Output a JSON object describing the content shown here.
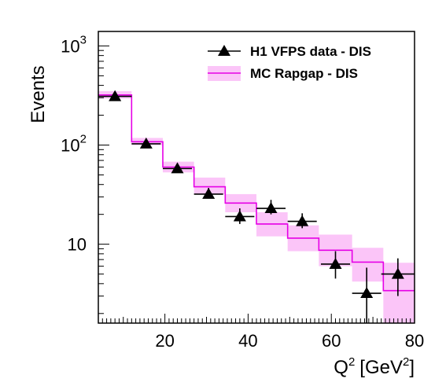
{
  "chart_data": {
    "type": "line",
    "xlabel": "Q",
    "xlabel_sup": "2",
    "xlabel_unit": "[GeV",
    "xlabel_unit_sup": "2",
    "xlabel_close": "]",
    "ylabel": "Events",
    "xlim": [
      4,
      80
    ],
    "ylim": [
      1.6,
      1400
    ],
    "yscale": "log",
    "x_ticks": [
      {
        "value": 20,
        "label": "20"
      },
      {
        "value": 40,
        "label": "40"
      },
      {
        "value": 60,
        "label": "60"
      },
      {
        "value": 80,
        "label": "80"
      }
    ],
    "y_ticks": [
      {
        "value": 10,
        "base": "10",
        "exp": ""
      },
      {
        "value": 100,
        "base": "10",
        "exp": "2"
      },
      {
        "value": 1000,
        "base": "10",
        "exp": "3"
      }
    ],
    "legend_placement": "top-right",
    "series": [
      {
        "name": "H1 VFPS data - DIS",
        "kind": "points",
        "color": "#000000",
        "x": [
          8,
          15.5,
          23,
          30.5,
          38,
          45.5,
          53,
          61,
          68.5,
          76
        ],
        "xerr": [
          4,
          3.5,
          3.5,
          3.5,
          3.5,
          3.5,
          3.5,
          3.5,
          3.5,
          4
        ],
        "y": [
          310,
          103,
          58,
          32,
          19,
          23,
          17,
          6.3,
          3.2,
          5.0
        ],
        "y_low": [
          290,
          97,
          54,
          29,
          16,
          20,
          14.5,
          4.5,
          1.6,
          3.0
        ],
        "y_high": [
          335,
          110,
          62,
          37,
          23,
          28,
          20.5,
          8.5,
          5.8,
          7.2
        ]
      },
      {
        "name": "MC Rapgap - DIS",
        "kind": "step-band",
        "color": "#e600e6",
        "band_color": "#fbc5f8",
        "bin_edges": [
          4,
          12,
          19.5,
          27,
          34.5,
          42,
          49.5,
          57,
          65,
          72.5,
          80
        ],
        "values": [
          320,
          108,
          60,
          38,
          26,
          16,
          11.5,
          8.7,
          6.6,
          3.4
        ],
        "band_low": [
          295,
          100,
          53,
          32,
          21,
          12,
          8.5,
          6.0,
          4.2,
          1.6
        ],
        "band_high": [
          350,
          118,
          68,
          47,
          32,
          21,
          15.5,
          12.5,
          9.2,
          6.5
        ]
      }
    ]
  }
}
